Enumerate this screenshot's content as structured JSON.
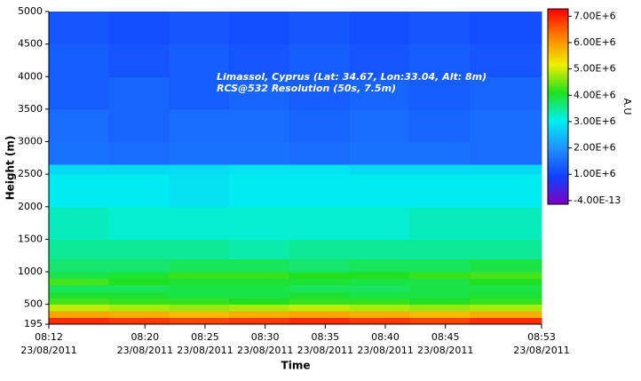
{
  "chart_data": {
    "type": "heatmap",
    "annotation": [
      "Limassol, Cyprus (Lat: 34.67, Lon:33.04, Alt: 8m)",
      "RCS@532 Resolution (50s, 7.5m)"
    ],
    "xlabel": "Time",
    "ylabel": "Height (m)",
    "colorbar_label": "A.U",
    "xlim": [
      "08:12",
      "08:53"
    ],
    "xticks": [
      {
        "value": "08:12",
        "label": "08:12",
        "date": "23/08/2011"
      },
      {
        "value": "08:20",
        "label": "08:20",
        "date": "23/08/2011"
      },
      {
        "value": "08:25",
        "label": "08:25",
        "date": "23/08/2011"
      },
      {
        "value": "08:30",
        "label": "08:30",
        "date": "23/08/2011"
      },
      {
        "value": "08:35",
        "label": "08:35",
        "date": "23/08/2011"
      },
      {
        "value": "08:40",
        "label": "08:40",
        "date": "23/08/2011"
      },
      {
        "value": "08:45",
        "label": "08:45",
        "date": "23/08/2011"
      },
      {
        "value": "08:53",
        "label": "08:53",
        "date": "23/08/2011"
      }
    ],
    "ylim": [
      195,
      5000
    ],
    "yticks": [
      195,
      500,
      1000,
      1500,
      2000,
      2500,
      3000,
      3500,
      4000,
      4500,
      5000
    ],
    "clim": [
      -140000,
      7280000
    ],
    "cticks": [
      {
        "value": 7000000,
        "label": "7.00E+6"
      },
      {
        "value": 6000000,
        "label": "6.00E+6"
      },
      {
        "value": 5000000,
        "label": "5.00E+6"
      },
      {
        "value": 4000000,
        "label": "4.00E+6"
      },
      {
        "value": 3000000,
        "label": "3.00E+6"
      },
      {
        "value": 2000000,
        "label": "2.00E+6"
      },
      {
        "value": 1000000,
        "label": "1.00E+6"
      },
      {
        "value": -4e-13,
        "label": "-4.00E-13"
      }
    ],
    "colorscale": [
      "#8000c0",
      "#1040ff",
      "#2090ff",
      "#00f0f0",
      "#20e020",
      "#f0f000",
      "#ff8000",
      "#ff0000"
    ],
    "xbins": [
      "08:12",
      "08:17",
      "08:22",
      "08:27",
      "08:32",
      "08:37",
      "08:42",
      "08:47",
      "08:53"
    ],
    "ybins": [
      195,
      300,
      400,
      500,
      600,
      700,
      800,
      900,
      1000,
      1200,
      1500,
      2000,
      2500,
      2650,
      3000,
      3500,
      4000,
      4500,
      5000
    ],
    "z": [
      [
        6900000,
        6800000,
        6700000,
        6800000,
        6900000,
        6800000,
        6700000,
        6900000
      ],
      [
        5900000,
        5800000,
        5700000,
        5800000,
        5900000,
        5800000,
        5700000,
        5800000
      ],
      [
        4900000,
        4800000,
        4700000,
        4800000,
        4900000,
        4800000,
        4700000,
        4800000
      ],
      [
        4300000,
        4200000,
        4200000,
        4100000,
        4200000,
        4200000,
        4100000,
        4200000
      ],
      [
        4000000,
        4000000,
        3900000,
        3900000,
        4000000,
        3900000,
        3900000,
        4000000
      ],
      [
        3800000,
        3800000,
        3900000,
        3900000,
        3800000,
        3800000,
        3900000,
        3900000
      ],
      [
        4300000,
        4100000,
        4000000,
        4000000,
        4000000,
        3900000,
        3900000,
        4100000
      ],
      [
        3900000,
        4000000,
        4200000,
        4200000,
        4100000,
        4100000,
        4200000,
        4300000
      ],
      [
        3700000,
        3700000,
        3800000,
        3800000,
        3700000,
        3800000,
        3800000,
        3900000
      ],
      [
        3500000,
        3500000,
        3500000,
        3400000,
        3500000,
        3500000,
        3500000,
        3500000
      ],
      [
        3300000,
        3200000,
        3200000,
        3200000,
        3200000,
        3200000,
        3300000,
        3300000
      ],
      [
        3000000,
        3000000,
        2900000,
        3000000,
        3000000,
        3000000,
        3000000,
        3000000
      ],
      [
        2800000,
        2800000,
        2800000,
        2900000,
        2900000,
        2800000,
        2800000,
        2800000
      ],
      [
        1600000,
        1500000,
        1600000,
        1600000,
        1500000,
        1600000,
        1600000,
        1500000
      ],
      [
        1500000,
        1400000,
        1500000,
        1500000,
        1400000,
        1500000,
        1400000,
        1500000
      ],
      [
        1300000,
        1400000,
        1300000,
        1400000,
        1300000,
        1400000,
        1300000,
        1400000
      ],
      [
        1300000,
        1200000,
        1300000,
        1200000,
        1300000,
        1200000,
        1300000,
        1200000
      ],
      [
        1200000,
        1100000,
        1200000,
        1100000,
        1200000,
        1100000,
        1200000,
        1100000
      ]
    ]
  }
}
